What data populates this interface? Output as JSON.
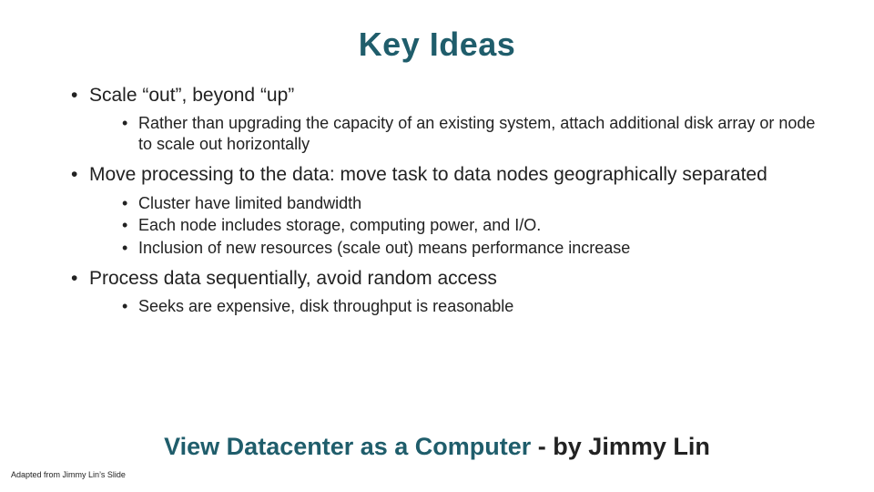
{
  "colors": {
    "title_color": "#1f5d6b",
    "body_text_color": "#222222",
    "quote_accent_color": "#1f5d6b",
    "quote_plain_color": "#222222",
    "background": "#ffffff"
  },
  "title": "Key Ideas",
  "bullets": [
    {
      "text": "Scale “out”, beyond “up”",
      "sub": [
        "Rather than upgrading the capacity of an existing system, attach additional disk array or node to scale out horizontally"
      ]
    },
    {
      "text": "Move processing to the data: move task to data nodes geographically separated",
      "sub": [
        "Cluster have limited bandwidth",
        "Each node includes storage, computing power, and I/O.",
        "Inclusion of new resources (scale out) means performance increase"
      ]
    },
    {
      "text": "Process data sequentially, avoid random access",
      "sub": [
        "Seeks are expensive, disk throughput is reasonable"
      ]
    }
  ],
  "quote": {
    "accent_part": "View Datacenter as a Computer",
    "plain_part": "   - by Jimmy Lin"
  },
  "attribution": "Adapted from Jimmy Lin’s Slide"
}
